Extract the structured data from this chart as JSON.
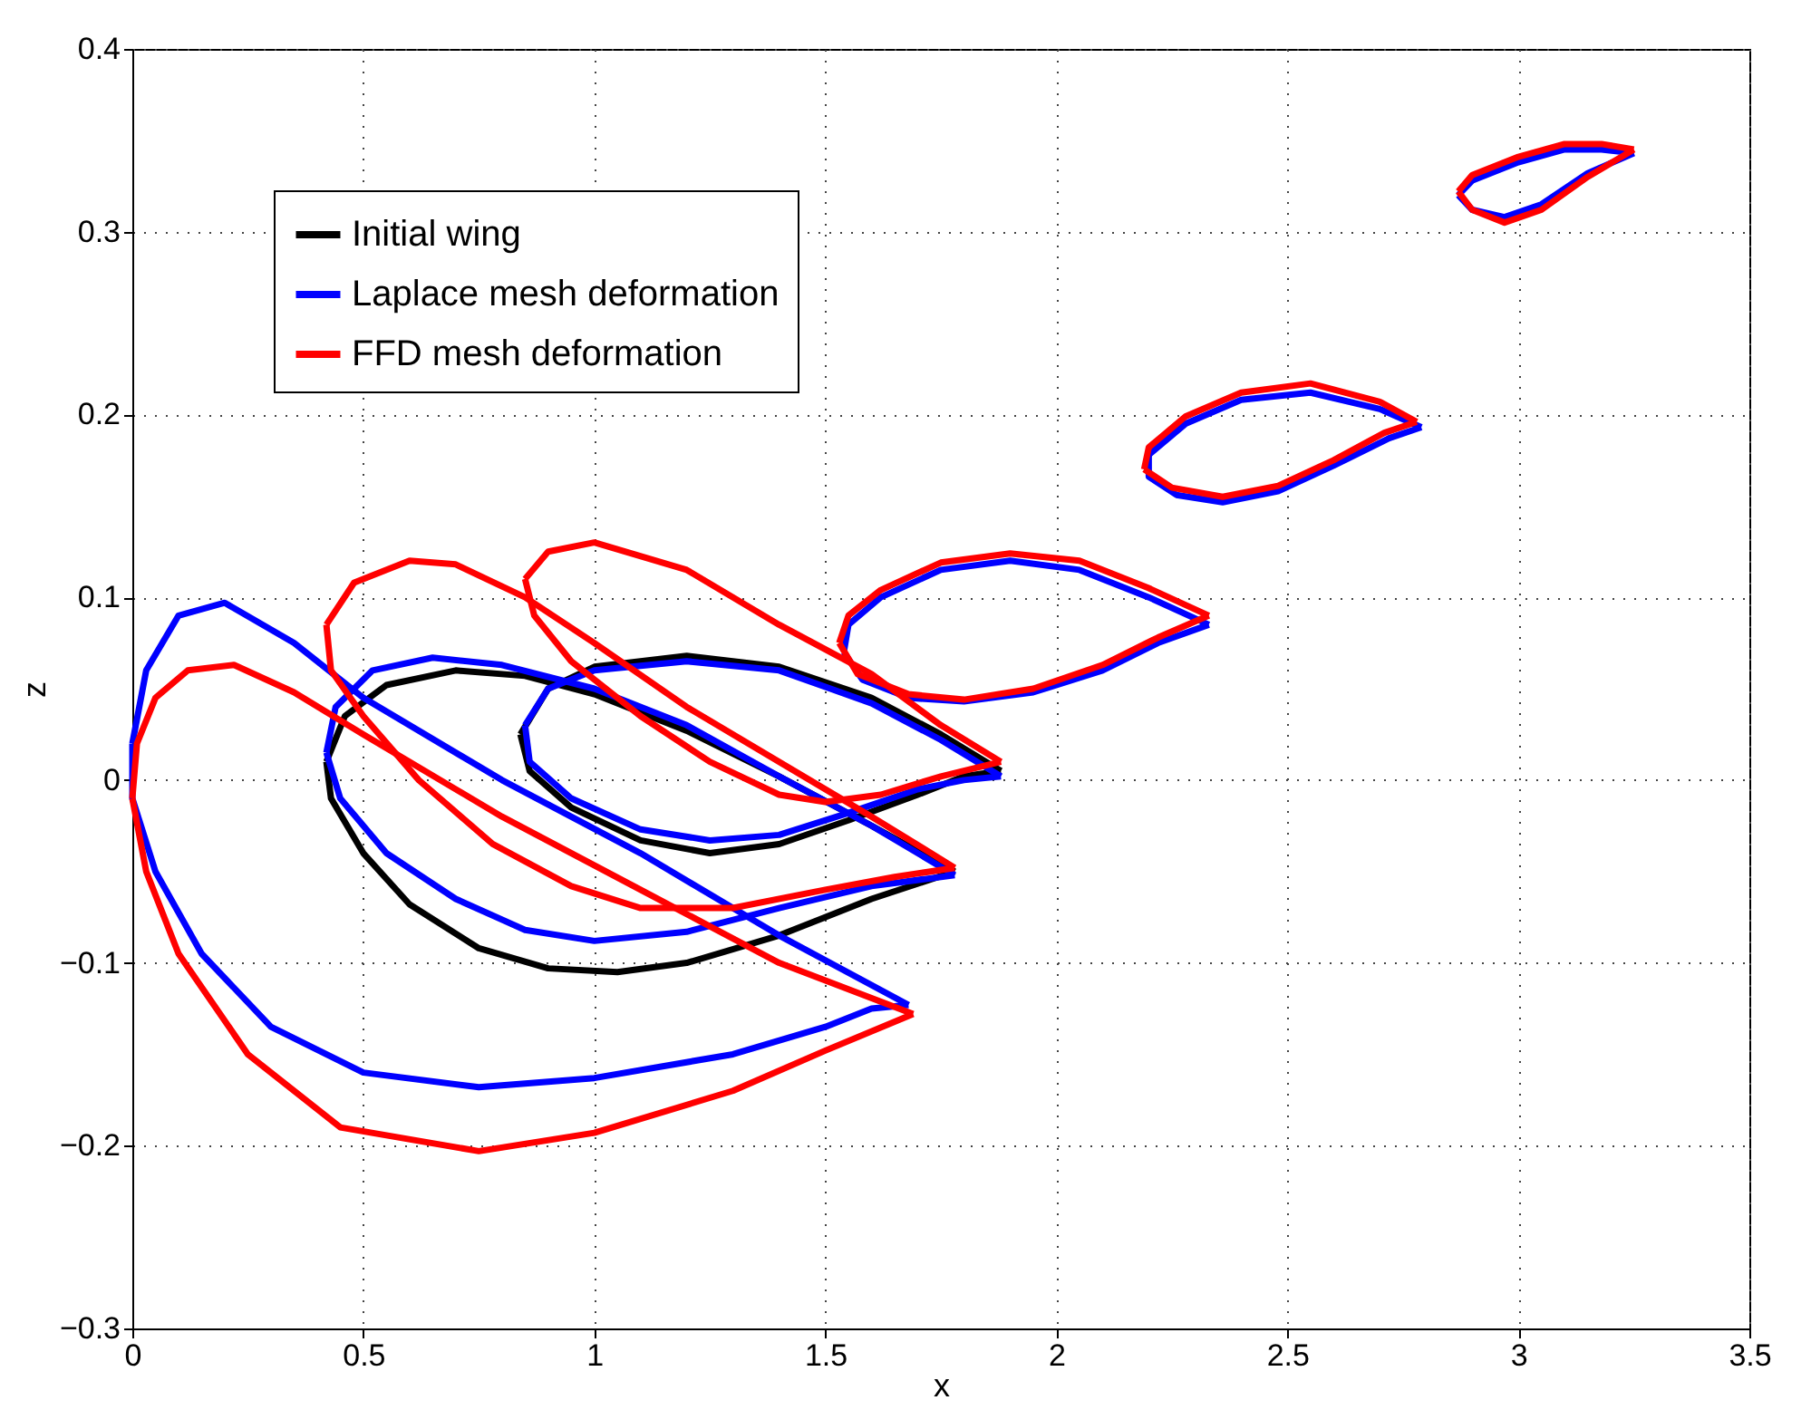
{
  "chart_data": {
    "type": "line",
    "xlabel": "x",
    "ylabel": "z",
    "xlim": [
      0,
      3.5
    ],
    "xticks": [
      0,
      0.5,
      1,
      1.5,
      2,
      2.5,
      3,
      3.5
    ],
    "ylim": [
      -0.3,
      0.4
    ],
    "yticks": [
      -0.3,
      -0.2,
      -0.1,
      0,
      0.1,
      0.2,
      0.3,
      0.4
    ],
    "grid": true,
    "legend": "top left",
    "marker": "none",
    "line_style": "solid",
    "series": [
      {
        "name": "Initial wing",
        "color": "#000000",
        "x": [
          1.78,
          1.6,
          1.4,
          1.2,
          1.0,
          0.85,
          0.7,
          0.55,
          0.46,
          0.42,
          0.43,
          0.5,
          0.6,
          0.75,
          0.9,
          1.05,
          1.2,
          1.4,
          1.6,
          1.78,
          null,
          1.88,
          1.75,
          1.6,
          1.4,
          1.2,
          1.0,
          0.9,
          0.84,
          0.86,
          0.95,
          1.1,
          1.25,
          1.4,
          1.55,
          1.7,
          1.8,
          1.88
        ],
        "values": [
          -0.05,
          -0.025,
          0.002,
          0.027,
          0.047,
          0.057,
          0.06,
          0.052,
          0.035,
          0.01,
          -0.01,
          -0.04,
          -0.068,
          -0.092,
          -0.103,
          -0.105,
          -0.1,
          -0.085,
          -0.065,
          -0.05,
          null,
          0.005,
          0.025,
          0.045,
          0.062,
          0.068,
          0.062,
          0.05,
          0.025,
          0.005,
          -0.015,
          -0.033,
          -0.04,
          -0.035,
          -0.022,
          -0.008,
          0.002,
          0.005
        ]
      },
      {
        "name": "Laplace mesh deformation",
        "color": "#0000ff",
        "x": [
          1.68,
          1.4,
          1.1,
          0.8,
          0.5,
          0.35,
          0.2,
          0.1,
          0.03,
          0.0,
          0.0,
          0.05,
          0.15,
          0.3,
          0.5,
          0.75,
          1.0,
          1.3,
          1.5,
          1.6,
          1.68,
          null,
          1.78,
          1.6,
          1.4,
          1.2,
          1.0,
          0.8,
          0.65,
          0.52,
          0.44,
          0.42,
          0.45,
          0.55,
          0.7,
          0.85,
          1.0,
          1.2,
          1.4,
          1.6,
          1.78,
          null,
          1.88,
          1.75,
          1.6,
          1.4,
          1.2,
          1.0,
          0.9,
          0.85,
          0.86,
          0.95,
          1.1,
          1.25,
          1.4,
          1.55,
          1.7,
          1.8,
          1.88,
          null,
          2.33,
          2.2,
          2.05,
          1.9,
          1.75,
          1.62,
          1.55,
          1.54,
          1.58,
          1.68,
          1.8,
          1.95,
          2.1,
          2.22,
          2.33,
          null,
          2.79,
          2.7,
          2.55,
          2.4,
          2.28,
          2.2,
          2.2,
          2.26,
          2.36,
          2.48,
          2.6,
          2.72,
          2.79,
          null,
          3.25,
          3.18,
          3.1,
          3.0,
          2.9,
          2.87,
          2.9,
          2.97,
          3.05,
          3.15,
          3.25
        ],
        "values": [
          -0.123,
          -0.085,
          -0.04,
          0.0,
          0.045,
          0.075,
          0.097,
          0.09,
          0.06,
          0.02,
          -0.01,
          -0.05,
          -0.095,
          -0.135,
          -0.16,
          -0.168,
          -0.163,
          -0.15,
          -0.135,
          -0.125,
          -0.123,
          null,
          -0.052,
          -0.025,
          0.002,
          0.03,
          0.05,
          0.063,
          0.067,
          0.06,
          0.04,
          0.015,
          -0.01,
          -0.04,
          -0.065,
          -0.082,
          -0.088,
          -0.083,
          -0.07,
          -0.058,
          -0.052,
          null,
          0.002,
          0.022,
          0.042,
          0.06,
          0.065,
          0.06,
          0.05,
          0.03,
          0.01,
          -0.01,
          -0.027,
          -0.033,
          -0.03,
          -0.018,
          -0.005,
          0.0,
          0.002,
          null,
          0.085,
          0.1,
          0.115,
          0.12,
          0.115,
          0.1,
          0.085,
          0.07,
          0.055,
          0.045,
          0.043,
          0.048,
          0.06,
          0.075,
          0.085,
          null,
          0.193,
          0.203,
          0.212,
          0.208,
          0.195,
          0.178,
          0.166,
          0.156,
          0.152,
          0.158,
          0.172,
          0.187,
          0.193,
          null,
          0.343,
          0.345,
          0.345,
          0.338,
          0.328,
          0.32,
          0.312,
          0.308,
          0.315,
          0.332,
          0.343
        ]
      },
      {
        "name": "FFD mesh deformation",
        "color": "#ff0000",
        "x": [
          1.69,
          1.4,
          1.1,
          0.8,
          0.5,
          0.35,
          0.22,
          0.12,
          0.05,
          0.01,
          0.0,
          0.03,
          0.1,
          0.25,
          0.45,
          0.75,
          1.0,
          1.3,
          1.5,
          1.69,
          null,
          1.78,
          1.6,
          1.4,
          1.2,
          1.0,
          0.85,
          0.7,
          0.6,
          0.48,
          0.42,
          0.43,
          0.5,
          0.62,
          0.78,
          0.95,
          1.1,
          1.3,
          1.5,
          1.65,
          1.78,
          null,
          1.88,
          1.75,
          1.6,
          1.4,
          1.2,
          1.0,
          0.9,
          0.85,
          0.87,
          0.95,
          1.1,
          1.25,
          1.4,
          1.5,
          1.62,
          1.75,
          1.88,
          null,
          2.33,
          2.2,
          2.05,
          1.9,
          1.75,
          1.62,
          1.55,
          1.53,
          1.57,
          1.68,
          1.8,
          1.95,
          2.1,
          2.22,
          2.33,
          null,
          2.78,
          2.7,
          2.55,
          2.4,
          2.28,
          2.2,
          2.19,
          2.25,
          2.36,
          2.48,
          2.6,
          2.71,
          2.78,
          null,
          3.25,
          3.18,
          3.1,
          3.0,
          2.9,
          2.87,
          2.9,
          2.97,
          3.05,
          3.15,
          3.25
        ],
        "values": [
          -0.128,
          -0.1,
          -0.06,
          -0.02,
          0.025,
          0.048,
          0.063,
          0.06,
          0.045,
          0.02,
          -0.01,
          -0.05,
          -0.095,
          -0.15,
          -0.19,
          -0.203,
          -0.193,
          -0.17,
          -0.148,
          -0.128,
          null,
          -0.048,
          -0.02,
          0.01,
          0.04,
          0.075,
          0.1,
          0.118,
          0.12,
          0.108,
          0.085,
          0.06,
          0.035,
          0.0,
          -0.035,
          -0.058,
          -0.07,
          -0.07,
          -0.06,
          -0.053,
          -0.048,
          null,
          0.01,
          0.03,
          0.058,
          0.085,
          0.115,
          0.13,
          0.125,
          0.11,
          0.09,
          0.065,
          0.035,
          0.01,
          -0.008,
          -0.012,
          -0.008,
          0.002,
          0.01,
          null,
          0.09,
          0.105,
          0.12,
          0.124,
          0.119,
          0.104,
          0.09,
          0.075,
          0.058,
          0.047,
          0.044,
          0.05,
          0.063,
          0.078,
          0.09,
          null,
          0.196,
          0.207,
          0.217,
          0.212,
          0.199,
          0.182,
          0.17,
          0.16,
          0.155,
          0.161,
          0.175,
          0.19,
          0.196,
          null,
          0.345,
          0.348,
          0.348,
          0.341,
          0.331,
          0.322,
          0.312,
          0.305,
          0.312,
          0.33,
          0.345
        ]
      }
    ]
  }
}
